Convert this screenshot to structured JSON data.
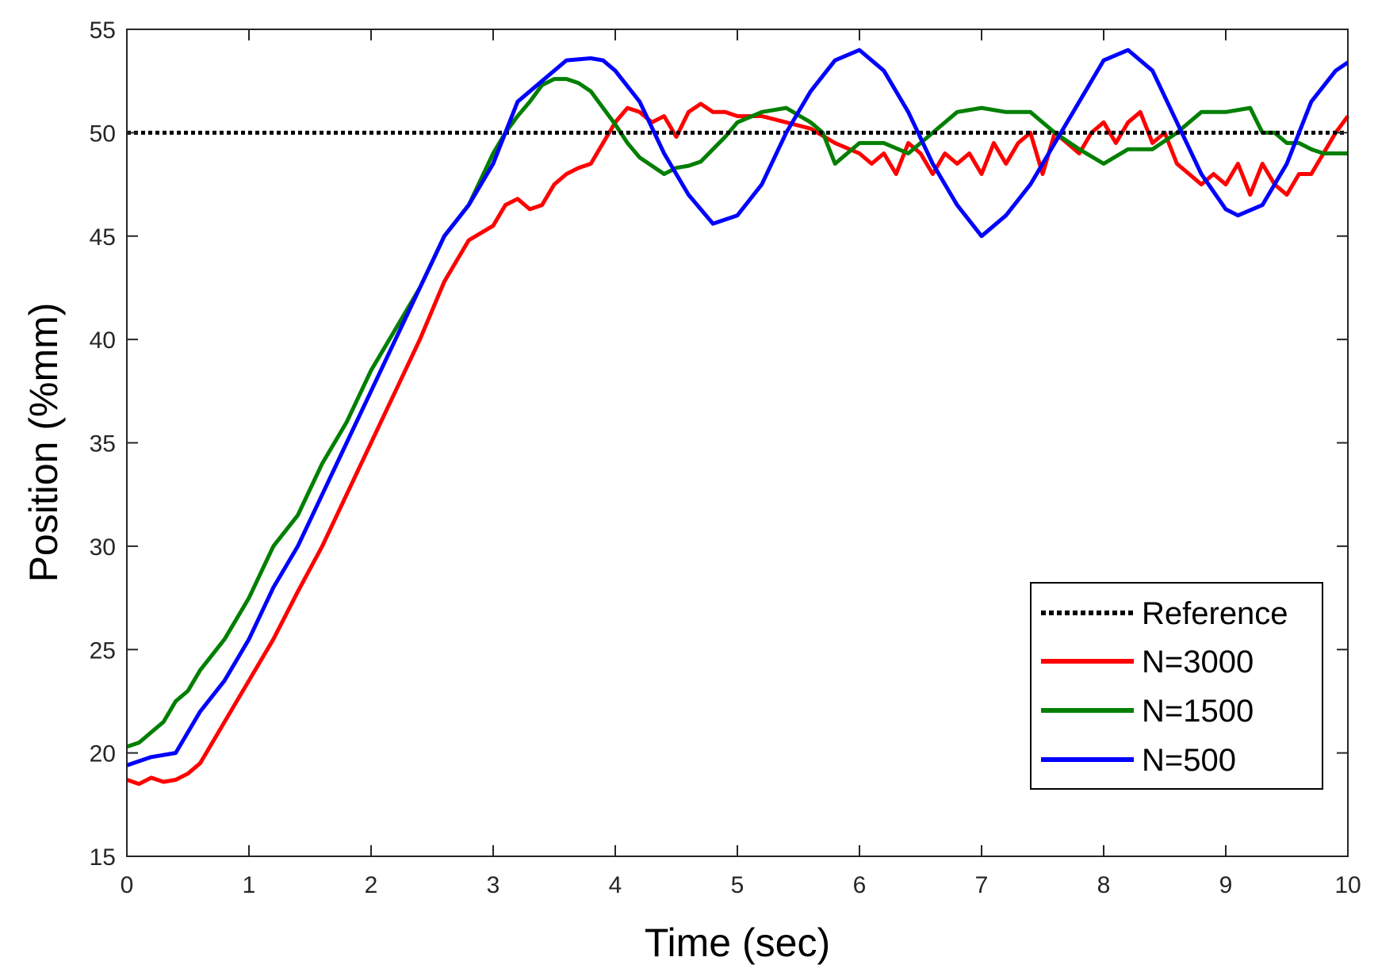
{
  "chart_data": {
    "type": "line",
    "title": "",
    "xlabel": "Time (sec)",
    "ylabel": "Position (%mm)",
    "xlim": [
      0,
      10
    ],
    "ylim": [
      15,
      55
    ],
    "xticks": [
      0,
      1,
      2,
      3,
      4,
      5,
      6,
      7,
      8,
      9,
      10
    ],
    "yticks": [
      15,
      20,
      25,
      30,
      35,
      40,
      45,
      50,
      55
    ],
    "grid": false,
    "legend_position": "bottom-right",
    "series": [
      {
        "name": "Reference",
        "color": "#000000",
        "style": "dotted",
        "x": [
          0,
          10
        ],
        "y": [
          50,
          50
        ]
      },
      {
        "name": "N=3000",
        "color": "#ff0000",
        "style": "solid",
        "x": [
          0,
          0.1,
          0.2,
          0.3,
          0.4,
          0.5,
          0.6,
          0.7,
          0.8,
          0.9,
          1.0,
          1.2,
          1.4,
          1.6,
          1.8,
          2.0,
          2.2,
          2.4,
          2.6,
          2.8,
          3.0,
          3.1,
          3.2,
          3.3,
          3.4,
          3.5,
          3.6,
          3.7,
          3.8,
          3.9,
          4.0,
          4.1,
          4.2,
          4.3,
          4.4,
          4.5,
          4.6,
          4.7,
          4.8,
          4.9,
          5.0,
          5.2,
          5.4,
          5.6,
          5.8,
          6.0,
          6.1,
          6.2,
          6.3,
          6.4,
          6.5,
          6.6,
          6.7,
          6.8,
          6.9,
          7.0,
          7.1,
          7.2,
          7.3,
          7.4,
          7.5,
          7.6,
          7.7,
          7.8,
          7.9,
          8.0,
          8.1,
          8.2,
          8.3,
          8.4,
          8.5,
          8.6,
          8.7,
          8.8,
          8.9,
          9.0,
          9.1,
          9.2,
          9.3,
          9.4,
          9.5,
          9.6,
          9.7,
          9.8,
          9.9,
          10.0
        ],
        "y": [
          18.7,
          18.5,
          18.8,
          18.6,
          18.7,
          19.0,
          19.5,
          20.5,
          21.5,
          22.5,
          23.5,
          25.5,
          27.8,
          30.0,
          32.5,
          35.0,
          37.5,
          40.0,
          42.8,
          44.8,
          45.5,
          46.5,
          46.8,
          46.3,
          46.5,
          47.5,
          48.0,
          48.3,
          48.5,
          49.5,
          50.5,
          51.2,
          51.0,
          50.5,
          50.8,
          49.8,
          51.0,
          51.4,
          51.0,
          51.0,
          50.8,
          50.8,
          50.5,
          50.2,
          49.5,
          49.0,
          48.5,
          49.0,
          48.0,
          49.5,
          49.0,
          48.0,
          49.0,
          48.5,
          49.0,
          48.0,
          49.5,
          48.5,
          49.5,
          50.0,
          48.0,
          50.0,
          49.5,
          49.0,
          50.0,
          50.5,
          49.5,
          50.5,
          51.0,
          49.5,
          50.0,
          48.5,
          48.0,
          47.5,
          48.0,
          47.5,
          48.5,
          47.0,
          48.5,
          47.5,
          47.0,
          48.0,
          48.0,
          49.0,
          50.0,
          50.8
        ]
      },
      {
        "name": "N=1500",
        "color": "#007f00",
        "style": "solid",
        "x": [
          0,
          0.1,
          0.2,
          0.3,
          0.4,
          0.5,
          0.6,
          0.8,
          1.0,
          1.2,
          1.4,
          1.6,
          1.8,
          2.0,
          2.2,
          2.4,
          2.6,
          2.8,
          3.0,
          3.1,
          3.2,
          3.3,
          3.4,
          3.5,
          3.6,
          3.7,
          3.8,
          3.9,
          4.0,
          4.1,
          4.2,
          4.3,
          4.4,
          4.5,
          4.6,
          4.7,
          4.8,
          4.9,
          5.0,
          5.2,
          5.4,
          5.6,
          5.7,
          5.8,
          6.0,
          6.2,
          6.4,
          6.6,
          6.8,
          7.0,
          7.2,
          7.4,
          7.6,
          7.8,
          8.0,
          8.2,
          8.4,
          8.6,
          8.8,
          9.0,
          9.2,
          9.3,
          9.4,
          9.5,
          9.6,
          9.7,
          9.8,
          10.0
        ],
        "y": [
          20.3,
          20.5,
          21.0,
          21.5,
          22.5,
          23.0,
          24.0,
          25.5,
          27.5,
          30.0,
          31.5,
          34.0,
          36.0,
          38.5,
          40.5,
          42.5,
          45.0,
          46.5,
          49.0,
          50.0,
          50.8,
          51.5,
          52.3,
          52.6,
          52.6,
          52.4,
          52.0,
          51.2,
          50.4,
          49.5,
          48.8,
          48.4,
          48.0,
          48.3,
          48.4,
          48.6,
          49.2,
          49.8,
          50.5,
          51.0,
          51.2,
          50.5,
          50.0,
          48.5,
          49.5,
          49.5,
          49.0,
          50.0,
          51.0,
          51.2,
          51.0,
          51.0,
          50.0,
          49.2,
          48.5,
          49.2,
          49.2,
          50.0,
          51.0,
          51.0,
          51.2,
          50.0,
          50.0,
          49.5,
          49.5,
          49.2,
          49.0,
          49.0
        ]
      },
      {
        "name": "N=500",
        "color": "#0000ff",
        "style": "solid",
        "x": [
          0,
          0.2,
          0.4,
          0.6,
          0.8,
          1.0,
          1.2,
          1.4,
          1.6,
          1.8,
          2.0,
          2.2,
          2.4,
          2.6,
          2.8,
          3.0,
          3.2,
          3.4,
          3.6,
          3.8,
          3.9,
          4.0,
          4.2,
          4.4,
          4.6,
          4.8,
          5.0,
          5.2,
          5.4,
          5.6,
          5.8,
          6.0,
          6.2,
          6.4,
          6.6,
          6.8,
          7.0,
          7.2,
          7.4,
          7.6,
          7.8,
          8.0,
          8.2,
          8.4,
          8.6,
          8.8,
          9.0,
          9.1,
          9.3,
          9.5,
          9.7,
          9.9,
          10.0
        ],
        "y": [
          19.4,
          19.8,
          20.0,
          22.0,
          23.5,
          25.5,
          28.0,
          30.0,
          32.5,
          35.0,
          37.5,
          40.0,
          42.5,
          45.0,
          46.5,
          48.5,
          51.5,
          52.5,
          53.5,
          53.6,
          53.5,
          53.0,
          51.5,
          49.0,
          47.0,
          45.6,
          46.0,
          47.5,
          50.0,
          52.0,
          53.5,
          54.0,
          53.0,
          51.0,
          48.5,
          46.5,
          45.0,
          46.0,
          47.5,
          49.5,
          51.5,
          53.5,
          54.0,
          53.0,
          50.5,
          48.0,
          46.3,
          46.0,
          46.5,
          48.5,
          51.5,
          53.0,
          53.4
        ]
      }
    ]
  }
}
